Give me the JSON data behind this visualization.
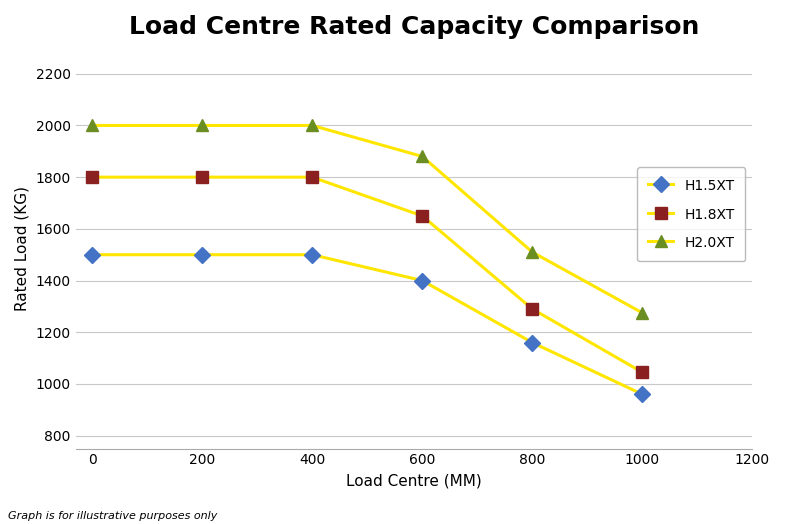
{
  "title": "Load Centre Rated Capacity Comparison",
  "xlabel": "Load Centre (MM)",
  "ylabel": "Rated Load (KG)",
  "footnote": "Graph is for illustrative purposes only",
  "xlim": [
    -30,
    1200
  ],
  "ylim": [
    750,
    2300
  ],
  "xticks": [
    0,
    200,
    400,
    600,
    800,
    1000,
    1200
  ],
  "yticks": [
    800,
    1000,
    1200,
    1400,
    1600,
    1800,
    2000,
    2200
  ],
  "series": [
    {
      "label": "H1.5XT",
      "x": [
        0,
        200,
        400,
        600,
        800,
        1000
      ],
      "y": [
        1500,
        1500,
        1500,
        1400,
        1160,
        960
      ],
      "marker_color": "#4472C4",
      "marker": "D",
      "line_color": "#FFE600",
      "linewidth": 2.2,
      "markersize": 8
    },
    {
      "label": "H1.8XT",
      "x": [
        0,
        200,
        400,
        600,
        800,
        1000
      ],
      "y": [
        1800,
        1800,
        1800,
        1650,
        1290,
        1045
      ],
      "marker_color": "#8B2020",
      "marker": "s",
      "line_color": "#FFE600",
      "linewidth": 2.2,
      "markersize": 8
    },
    {
      "label": "H2.0XT",
      "x": [
        0,
        200,
        400,
        600,
        800,
        1000
      ],
      "y": [
        2000,
        2000,
        2000,
        1880,
        1510,
        1275
      ],
      "marker_color": "#6B8E23",
      "marker": "^",
      "line_color": "#FFE600",
      "linewidth": 2.2,
      "markersize": 9
    }
  ],
  "plot_bg_color": "#FFFFFF",
  "fig_bg_color": "#FFFFFF",
  "grid_color": "#C8C8C8",
  "title_fontsize": 18,
  "label_fontsize": 11,
  "tick_fontsize": 10,
  "legend_fontsize": 10,
  "footnote_fontsize": 8
}
